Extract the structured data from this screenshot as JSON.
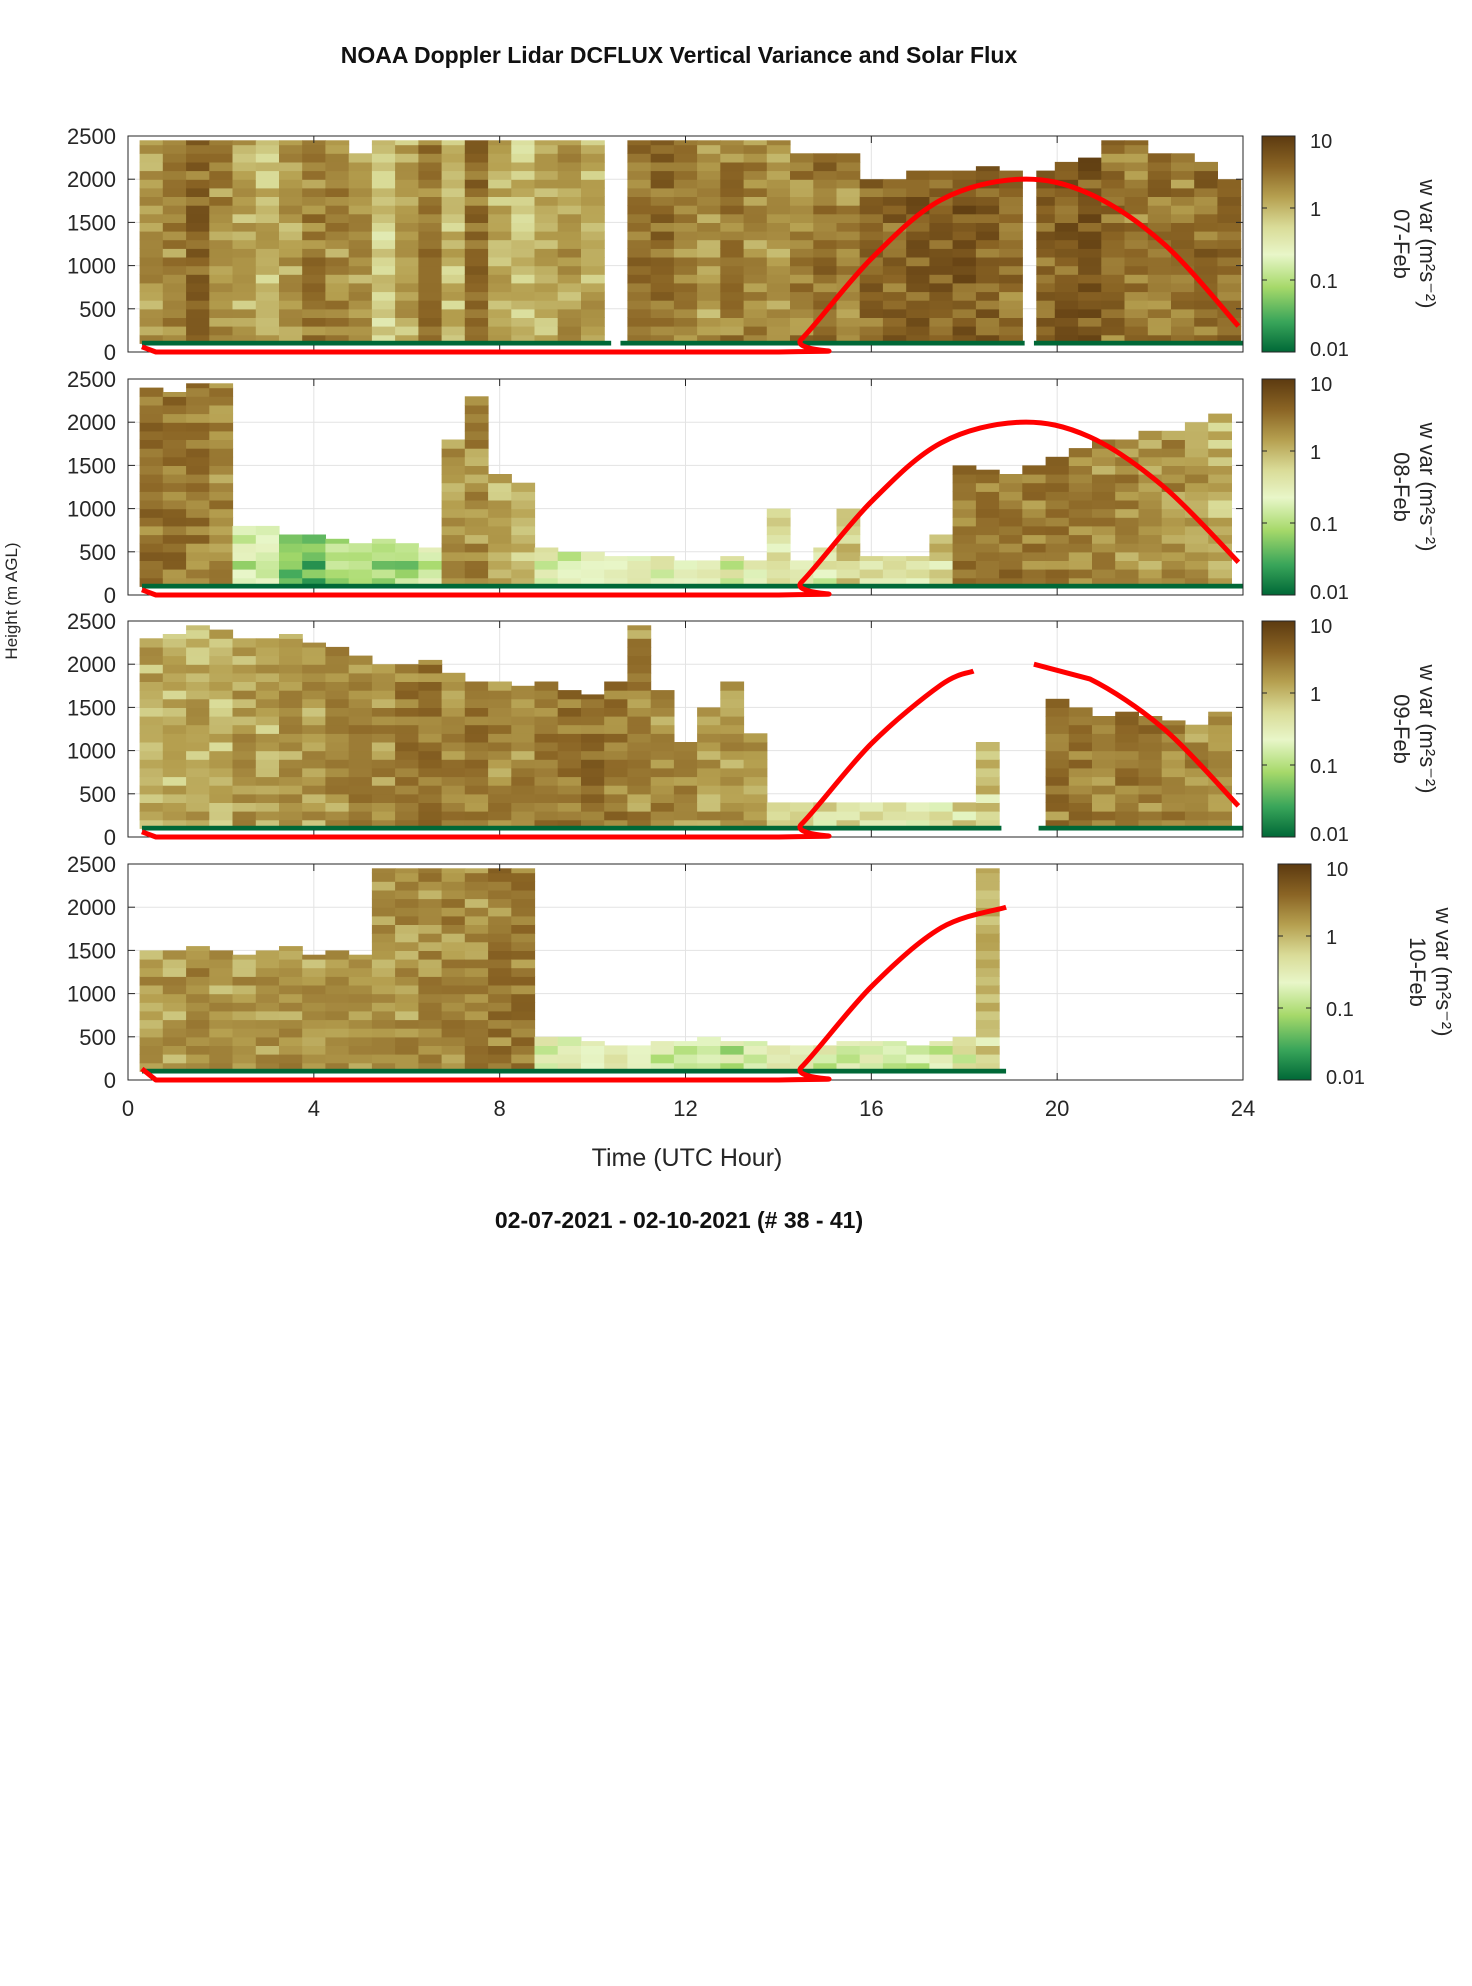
{
  "title": "NOAA Doppler Lidar DCFLUX Vertical Variance and Solar Flux",
  "footer": "02-07-2021 - 02-10-2021   (# 38 - 41)",
  "colors": {
    "colormap": [
      "#006837",
      "#39a55a",
      "#a6d96a",
      "#e8f6c8",
      "#d9db97",
      "#b59f4f",
      "#8a6424",
      "#5c3a10"
    ],
    "solar_curve": "#ff0000",
    "grid": "#e3e3e3",
    "axis": "#262626"
  },
  "chart_data": {
    "type": "heatmap",
    "layout": "4 stacked panels sharing x axis, each with its own colorbar on the right",
    "xlabel": "Time (UTC Hour)",
    "ylabel": "Height (m AGL)",
    "xlim": [
      0,
      24
    ],
    "ylim": [
      0,
      2500
    ],
    "xticks": [
      0,
      4,
      8,
      12,
      16,
      20,
      24
    ],
    "yticks": [
      0,
      500,
      1000,
      1500,
      2000,
      2500
    ],
    "grid": true,
    "colorbar": {
      "label": "w var (m²s⁻²)",
      "scale": "log",
      "range": [
        0.01,
        10
      ],
      "ticks": [
        "10",
        "1",
        "0.1",
        "0.01"
      ]
    },
    "panels": [
      {
        "date": "07-Feb",
        "colorbar_label": "w var (m²s⁻²)",
        "data_coverage_hours": [
          [
            0.3,
            10.4
          ],
          [
            10.6,
            19.3
          ],
          [
            19.5,
            24
          ]
        ],
        "variance_columns": [
          [
            0.5,
            2450,
            1.5
          ],
          [
            1.0,
            2450,
            2.0
          ],
          [
            1.5,
            2450,
            3.5
          ],
          [
            2.0,
            2450,
            2.0
          ],
          [
            2.5,
            2450,
            1.2
          ],
          [
            3.0,
            2450,
            1.0
          ],
          [
            3.5,
            2450,
            1.5
          ],
          [
            4.0,
            2450,
            2.5
          ],
          [
            4.5,
            2450,
            2.0
          ],
          [
            5.0,
            2300,
            1.5
          ],
          [
            5.5,
            2450,
            0.6
          ],
          [
            6.0,
            2450,
            1.2
          ],
          [
            6.5,
            2450,
            2.5
          ],
          [
            7.0,
            2450,
            1.0
          ],
          [
            7.5,
            2450,
            3.0
          ],
          [
            8.0,
            2450,
            1.0
          ],
          [
            8.5,
            2450,
            0.8
          ],
          [
            9.0,
            2450,
            1.0
          ],
          [
            9.5,
            2450,
            1.5
          ],
          [
            10.0,
            2450,
            1.2
          ],
          [
            11.0,
            2450,
            3.0
          ],
          [
            11.5,
            2450,
            3.5
          ],
          [
            12.0,
            2450,
            2.0
          ],
          [
            12.5,
            2450,
            1.5
          ],
          [
            13.0,
            2450,
            2.5
          ],
          [
            13.5,
            2450,
            2.0
          ],
          [
            14.0,
            2450,
            1.5
          ],
          [
            14.5,
            2300,
            2.5
          ],
          [
            15.0,
            2300,
            3.0
          ],
          [
            15.5,
            2300,
            2.0
          ],
          [
            16.0,
            2000,
            3.5
          ],
          [
            16.5,
            2000,
            4.0
          ],
          [
            17.0,
            2100,
            5.0
          ],
          [
            17.5,
            2100,
            4.0
          ],
          [
            18.0,
            2100,
            5.0
          ],
          [
            18.5,
            2150,
            4.0
          ],
          [
            19.0,
            2100,
            3.0
          ],
          [
            19.8,
            2100,
            4.0
          ],
          [
            20.2,
            2200,
            4.5
          ],
          [
            20.7,
            2250,
            5.0
          ],
          [
            21.2,
            2450,
            3.0
          ],
          [
            21.7,
            2450,
            2.5
          ],
          [
            22.2,
            2300,
            3.0
          ],
          [
            22.7,
            2300,
            2.5
          ],
          [
            23.2,
            2200,
            3.5
          ],
          [
            23.7,
            2000,
            3.0
          ]
        ],
        "solar_flux_curve": [
          [
            0.3,
            60
          ],
          [
            0.6,
            0
          ],
          [
            14.0,
            0
          ],
          [
            14.5,
            150
          ],
          [
            16.0,
            1080
          ],
          [
            17.5,
            1760
          ],
          [
            19.2,
            2000
          ],
          [
            20.7,
            1830
          ],
          [
            22.3,
            1250
          ],
          [
            23.9,
            300
          ]
        ]
      },
      {
        "date": "08-Feb",
        "colorbar_label": "w var (m²s⁻²)",
        "data_coverage_hours": [
          [
            0.3,
            24
          ]
        ],
        "variance_columns": [
          [
            0.5,
            2400,
            3.0
          ],
          [
            1.0,
            2350,
            3.0
          ],
          [
            1.5,
            2450,
            2.5
          ],
          [
            2.0,
            2450,
            2.0
          ],
          [
            2.5,
            800,
            0.2
          ],
          [
            3.0,
            800,
            0.15
          ],
          [
            3.5,
            700,
            0.05
          ],
          [
            4.0,
            700,
            0.05
          ],
          [
            4.5,
            650,
            0.1
          ],
          [
            5.0,
            600,
            0.1
          ],
          [
            5.5,
            650,
            0.08
          ],
          [
            6.0,
            600,
            0.1
          ],
          [
            6.5,
            550,
            0.2
          ],
          [
            7.0,
            1800,
            1.5
          ],
          [
            7.5,
            2300,
            2.0
          ],
          [
            8.0,
            1400,
            1.0
          ],
          [
            8.5,
            1300,
            0.8
          ],
          [
            9.0,
            550,
            0.3
          ],
          [
            9.5,
            500,
            0.2
          ],
          [
            10.0,
            500,
            0.3
          ],
          [
            10.5,
            450,
            0.2
          ],
          [
            11.0,
            450,
            0.3
          ],
          [
            11.5,
            450,
            0.3
          ],
          [
            12.0,
            400,
            0.3
          ],
          [
            12.5,
            400,
            0.3
          ],
          [
            13.0,
            450,
            0.3
          ],
          [
            13.5,
            400,
            0.3
          ],
          [
            14.0,
            1000,
            0.4
          ],
          [
            14.5,
            400,
            0.3
          ],
          [
            15.0,
            550,
            0.4
          ],
          [
            15.5,
            1000,
            0.8
          ],
          [
            16.0,
            450,
            0.6
          ],
          [
            16.5,
            450,
            0.6
          ],
          [
            17.0,
            450,
            0.8
          ],
          [
            17.5,
            700,
            0.8
          ],
          [
            18.0,
            1500,
            2.5
          ],
          [
            18.5,
            1450,
            3.0
          ],
          [
            19.0,
            1400,
            3.0
          ],
          [
            19.5,
            1500,
            2.5
          ],
          [
            20.0,
            1600,
            2.5
          ],
          [
            20.5,
            1700,
            2.0
          ],
          [
            21.0,
            1800,
            2.0
          ],
          [
            21.5,
            1800,
            2.0
          ],
          [
            22.0,
            1900,
            1.5
          ],
          [
            22.5,
            1900,
            2.0
          ],
          [
            23.0,
            2000,
            1.5
          ],
          [
            23.5,
            2100,
            1.0
          ]
        ],
        "solar_flux_curve": [
          [
            0.3,
            60
          ],
          [
            0.6,
            0
          ],
          [
            14.0,
            0
          ],
          [
            14.5,
            150
          ],
          [
            16.0,
            1080
          ],
          [
            17.5,
            1760
          ],
          [
            19.2,
            2000
          ],
          [
            20.7,
            1830
          ],
          [
            22.3,
            1250
          ],
          [
            23.9,
            380
          ]
        ]
      },
      {
        "date": "09-Feb",
        "colorbar_label": "w var (m²s⁻²)",
        "data_coverage_hours": [
          [
            0.3,
            18.8
          ],
          [
            19.6,
            24
          ]
        ],
        "variance_columns": [
          [
            0.5,
            2300,
            1.2
          ],
          [
            1.0,
            2350,
            1.0
          ],
          [
            1.5,
            2450,
            1.2
          ],
          [
            2.0,
            2400,
            1.0
          ],
          [
            2.5,
            2300,
            1.5
          ],
          [
            3.0,
            2300,
            1.2
          ],
          [
            3.5,
            2350,
            1.5
          ],
          [
            4.0,
            2250,
            1.5
          ],
          [
            4.5,
            2200,
            1.8
          ],
          [
            5.0,
            2100,
            2.0
          ],
          [
            5.5,
            2000,
            2.0
          ],
          [
            6.0,
            2000,
            2.5
          ],
          [
            6.5,
            2050,
            2.5
          ],
          [
            7.0,
            1900,
            2.0
          ],
          [
            7.5,
            1800,
            2.5
          ],
          [
            8.0,
            1800,
            2.0
          ],
          [
            8.5,
            1750,
            2.0
          ],
          [
            9.0,
            1800,
            2.5
          ],
          [
            9.5,
            1700,
            3.0
          ],
          [
            10.0,
            1650,
            3.0
          ],
          [
            10.5,
            1800,
            2.5
          ],
          [
            11.0,
            2450,
            2.0
          ],
          [
            11.5,
            1700,
            2.0
          ],
          [
            12.0,
            1100,
            2.0
          ],
          [
            12.5,
            1500,
            1.5
          ],
          [
            13.0,
            1800,
            1.5
          ],
          [
            13.5,
            1200,
            1.5
          ],
          [
            14.0,
            400,
            0.5
          ],
          [
            14.5,
            400,
            0.6
          ],
          [
            15.0,
            400,
            0.6
          ],
          [
            15.5,
            400,
            0.6
          ],
          [
            16.0,
            400,
            0.6
          ],
          [
            16.5,
            400,
            0.6
          ],
          [
            17.0,
            400,
            0.6
          ],
          [
            17.5,
            400,
            0.6
          ],
          [
            18.0,
            400,
            0.7
          ],
          [
            18.5,
            1100,
            0.8
          ],
          [
            20.0,
            1600,
            2.5
          ],
          [
            20.5,
            1500,
            2.5
          ],
          [
            21.0,
            1400,
            2.5
          ],
          [
            21.5,
            1450,
            2.5
          ],
          [
            22.0,
            1400,
            2.5
          ],
          [
            22.5,
            1350,
            2.0
          ],
          [
            23.0,
            1300,
            2.0
          ],
          [
            23.5,
            1450,
            1.5
          ]
        ],
        "solar_flux_curve": [
          [
            0.3,
            60
          ],
          [
            0.6,
            0
          ],
          [
            14.0,
            0
          ],
          [
            14.5,
            150
          ],
          [
            16.0,
            1080
          ],
          [
            17.5,
            1760
          ],
          [
            18.2,
            1920
          ],
          null,
          [
            19.5,
            2000
          ],
          [
            20.7,
            1830
          ],
          [
            22.3,
            1250
          ],
          [
            23.9,
            360
          ]
        ]
      },
      {
        "date": "10-Feb",
        "colorbar_label": "w var (m²s⁻²)",
        "data_coverage_hours": [
          [
            0.3,
            18.9
          ]
        ],
        "variance_columns": [
          [
            0.5,
            1500,
            1.5
          ],
          [
            1.0,
            1500,
            1.5
          ],
          [
            1.5,
            1550,
            1.8
          ],
          [
            2.0,
            1500,
            1.5
          ],
          [
            2.5,
            1450,
            1.5
          ],
          [
            3.0,
            1500,
            1.5
          ],
          [
            3.5,
            1550,
            1.8
          ],
          [
            4.0,
            1450,
            1.5
          ],
          [
            4.5,
            1500,
            1.5
          ],
          [
            5.0,
            1450,
            1.5
          ],
          [
            5.5,
            2450,
            1.5
          ],
          [
            6.0,
            2450,
            1.8
          ],
          [
            6.5,
            2450,
            1.8
          ],
          [
            7.0,
            2450,
            2.0
          ],
          [
            7.5,
            2450,
            2.0
          ],
          [
            8.0,
            2450,
            2.5
          ],
          [
            8.5,
            2450,
            2.5
          ],
          [
            9.0,
            500,
            0.3
          ],
          [
            9.5,
            500,
            0.3
          ],
          [
            10.0,
            450,
            0.3
          ],
          [
            10.5,
            400,
            0.3
          ],
          [
            11.0,
            400,
            0.2
          ],
          [
            11.5,
            450,
            0.2
          ],
          [
            12.0,
            450,
            0.15
          ],
          [
            12.5,
            500,
            0.15
          ],
          [
            13.0,
            450,
            0.2
          ],
          [
            13.5,
            450,
            0.2
          ],
          [
            14.0,
            400,
            0.3
          ],
          [
            14.5,
            400,
            0.3
          ],
          [
            15.0,
            400,
            0.3
          ],
          [
            15.5,
            450,
            0.2
          ],
          [
            16.0,
            450,
            0.3
          ],
          [
            16.5,
            450,
            0.2
          ],
          [
            17.0,
            400,
            0.3
          ],
          [
            17.5,
            450,
            0.3
          ],
          [
            18.0,
            500,
            0.4
          ],
          [
            18.5,
            2450,
            0.8
          ]
        ],
        "solar_flux_curve": [
          [
            0.3,
            130
          ],
          [
            0.6,
            0
          ],
          [
            14.0,
            0
          ],
          [
            14.5,
            150
          ],
          [
            16.0,
            1080
          ],
          [
            17.5,
            1760
          ],
          [
            18.9,
            2000
          ]
        ]
      }
    ]
  }
}
